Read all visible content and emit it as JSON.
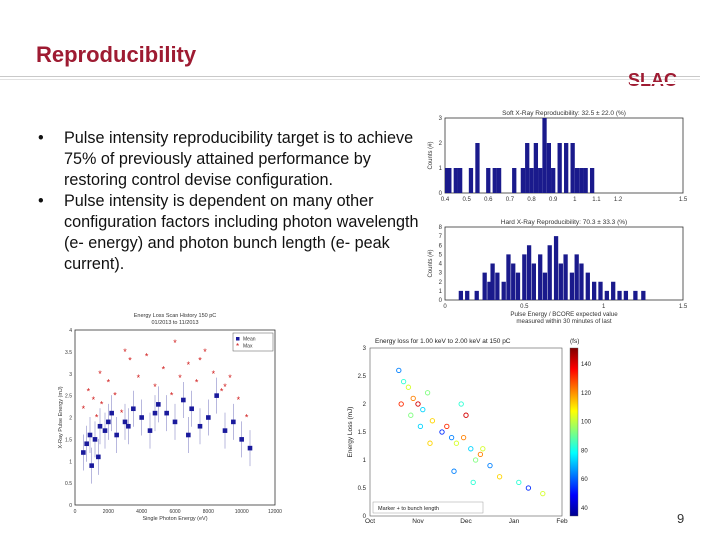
{
  "slide": {
    "title": "Reproducibility",
    "logo_text": "SLAC",
    "page_number": "9",
    "accent_color": "#9e1b32"
  },
  "bullets": [
    "Pulse intensity reproducibility target is to achieve 75% of previously attained performance by restoring control devise configuration.",
    "Pulse intensity is dependent on many other configuration factors including photon wavelength (e- energy) and photon bunch length (e- peak current)."
  ],
  "bullet_marker": "•",
  "chart_data": [
    {
      "type": "bar",
      "title": "Soft X-Ray Reproducibility: 32.5 ± 22.0 (%)",
      "xlabel": "",
      "ylabel": "Counts (#)",
      "xlim": [
        0.4,
        1.5
      ],
      "ylim": [
        0,
        3
      ],
      "xticks": [
        "0.4",
        "0.5",
        "0.6",
        "0.7",
        "0.8",
        "0.9",
        "1",
        "1.1",
        "1.2",
        "1.5"
      ],
      "yticks": [
        "0",
        "1",
        "2",
        "3"
      ],
      "x": [
        0.41,
        0.42,
        0.45,
        0.47,
        0.52,
        0.55,
        0.6,
        0.63,
        0.65,
        0.72,
        0.76,
        0.78,
        0.8,
        0.82,
        0.84,
        0.86,
        0.88,
        0.9,
        0.93,
        0.96,
        0.99,
        1.01,
        1.03,
        1.05,
        1.08
      ],
      "values": [
        1,
        1,
        1,
        1,
        1,
        2,
        1,
        1,
        1,
        1,
        1,
        2,
        1,
        2,
        1,
        3,
        2,
        1,
        2,
        2,
        2,
        1,
        1,
        1,
        1
      ],
      "color": "#1a1a8c"
    },
    {
      "type": "bar",
      "title": "Hard X-Ray Reproducibility: 70.3 ± 33.3 (%)",
      "xlabel": "Pulse Energy / BCORE expected value measured within 30 minutes of last",
      "ylabel": "Counts (#)",
      "xlim": [
        0,
        1.5
      ],
      "ylim": [
        0,
        8
      ],
      "xticks": [
        "0",
        "0.5",
        "1",
        "1.5"
      ],
      "yticks": [
        "0",
        "1",
        "2",
        "3",
        "4",
        "5",
        "6",
        "7",
        "8"
      ],
      "x": [
        0.1,
        0.14,
        0.2,
        0.25,
        0.28,
        0.3,
        0.33,
        0.37,
        0.4,
        0.43,
        0.46,
        0.5,
        0.53,
        0.56,
        0.6,
        0.63,
        0.66,
        0.7,
        0.73,
        0.76,
        0.8,
        0.83,
        0.86,
        0.9,
        0.94,
        0.98,
        1.02,
        1.06,
        1.1,
        1.14,
        1.2,
        1.25
      ],
      "values": [
        1,
        1,
        1,
        3,
        2,
        4,
        3,
        2,
        5,
        4,
        3,
        5,
        6,
        4,
        5,
        3,
        6,
        7,
        4,
        5,
        3,
        5,
        4,
        3,
        2,
        2,
        1,
        2,
        1,
        1,
        1,
        1
      ],
      "color": "#1a1a8c"
    },
    {
      "type": "scatter",
      "title": "Energy Loss Scan History 150 pC",
      "subtitle": "01/2013 to 11/2013",
      "xlabel": "Single Photon Energy (eV)",
      "ylabel": "X-Ray Pulse Energy (mJ)",
      "xlim": [
        0,
        12000
      ],
      "ylim": [
        0,
        4
      ],
      "xticks": [
        "0",
        "2000",
        "4000",
        "6000",
        "8000",
        "10000",
        "12000"
      ],
      "yticks": [
        "0",
        "0.5",
        "1",
        "1.5",
        "2",
        "2.5",
        "3",
        "3.5",
        "4"
      ],
      "legend": [
        "Mean",
        "Max"
      ],
      "series": [
        {
          "name": "Mean",
          "x": [
            500,
            700,
            900,
            1200,
            1500,
            1800,
            2000,
            2200,
            2500,
            3000,
            3500,
            4000,
            4500,
            5000,
            5500,
            6000,
            6500,
            7000,
            7500,
            8000,
            8500,
            9000,
            9500,
            10000,
            10500,
            1000,
            1400,
            3200,
            4800,
            6800
          ],
          "y": [
            1.2,
            1.4,
            1.6,
            1.5,
            1.8,
            1.7,
            1.9,
            2.1,
            1.6,
            1.9,
            2.2,
            2.0,
            1.7,
            2.3,
            2.1,
            1.9,
            2.4,
            2.2,
            1.8,
            2.0,
            2.5,
            1.7,
            1.9,
            1.5,
            1.3,
            0.9,
            1.1,
            1.8,
            2.1,
            1.6
          ]
        },
        {
          "name": "Max",
          "x": [
            500,
            800,
            1100,
            1300,
            1600,
            2000,
            2400,
            2800,
            3300,
            3800,
            4300,
            4800,
            5300,
            5800,
            6300,
            6800,
            7300,
            7800,
            8300,
            8800,
            9300,
            9800,
            10300,
            1500,
            3000,
            6000,
            7500,
            9000
          ],
          "y": [
            2.2,
            2.6,
            2.4,
            2.0,
            2.3,
            2.8,
            2.5,
            2.1,
            3.3,
            2.9,
            3.4,
            2.7,
            3.1,
            2.5,
            2.9,
            3.2,
            2.8,
            3.5,
            3.0,
            2.6,
            2.9,
            2.4,
            2.0,
            3.0,
            3.5,
            3.7,
            3.3,
            2.7
          ]
        }
      ]
    },
    {
      "type": "scatter",
      "title": "Energy loss for 1.00 keV to 2.00 keV at 150 pC",
      "xlabel": "",
      "ylabel": "Energy Loss (mJ)",
      "xlim": [
        "Oct",
        "Feb"
      ],
      "ylim": [
        0,
        3
      ],
      "xticks": [
        "Oct",
        "Nov",
        "Dec",
        "Jan",
        "Feb"
      ],
      "yticks": [
        "0",
        "0.5",
        "1",
        "1.5",
        "2",
        "2.5",
        "3"
      ],
      "colorbar_label": "(fs)",
      "colorbar_ticks": [
        "40",
        "60",
        "80",
        "100",
        "120",
        "140"
      ],
      "legend": [
        "Marker + to bunch length"
      ],
      "series": [
        {
          "name": "points",
          "x": [
            0.6,
            0.7,
            0.8,
            0.9,
            1.0,
            1.1,
            1.2,
            1.3,
            1.5,
            1.6,
            1.7,
            1.8,
            1.9,
            2.0,
            2.1,
            2.2,
            2.3,
            2.5,
            2.7,
            3.1,
            3.3,
            3.6,
            0.65,
            0.85,
            1.05,
            1.25,
            1.75,
            1.95,
            2.15,
            2.35
          ],
          "y": [
            2.6,
            2.4,
            2.3,
            2.1,
            2.0,
            1.9,
            2.2,
            1.7,
            1.5,
            1.6,
            1.4,
            1.3,
            2.0,
            1.8,
            1.2,
            1.0,
            1.1,
            0.9,
            0.7,
            0.6,
            0.5,
            0.4,
            2.0,
            1.8,
            1.6,
            1.3,
            0.8,
            1.4,
            0.6,
            1.2
          ],
          "c": [
            60,
            80,
            100,
            120,
            140,
            70,
            90,
            110,
            50,
            130,
            60,
            100,
            80,
            140,
            70,
            90,
            120,
            60,
            110,
            80,
            50,
            100,
            130,
            90,
            70,
            110,
            60,
            120,
            80,
            100
          ]
        }
      ]
    }
  ]
}
